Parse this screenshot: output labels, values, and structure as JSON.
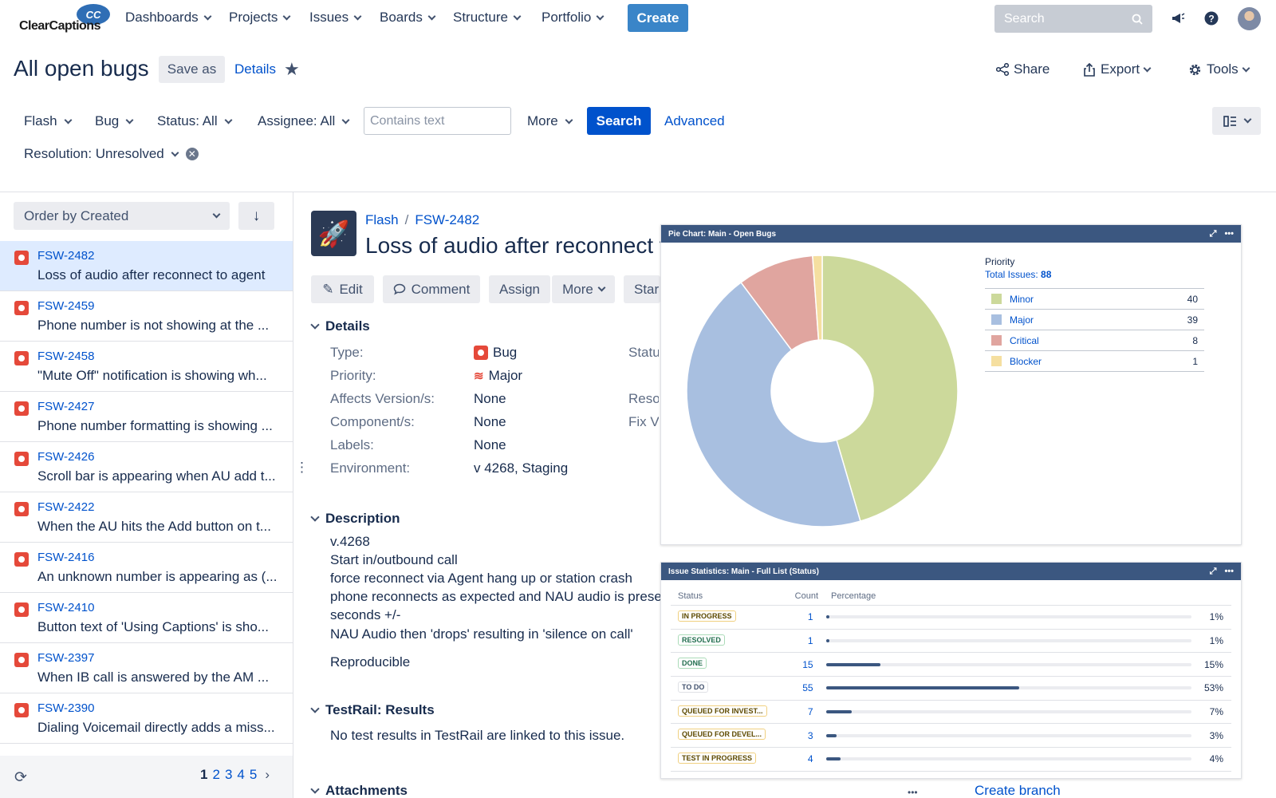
{
  "topnav": {
    "logo_text": "ClearCaptions",
    "logo_badge": "CC",
    "menus": [
      "Dashboards",
      "Projects",
      "Issues",
      "Boards",
      "Structure",
      "Portfolio"
    ],
    "create_label": "Create",
    "search_placeholder": "Search"
  },
  "header": {
    "title": "All open bugs",
    "save_as": "Save as",
    "details": "Details",
    "share": "Share",
    "export": "Export",
    "tools": "Tools"
  },
  "filters": {
    "project": "Flash",
    "type": "Bug",
    "status": "Status: All",
    "assignee": "Assignee: All",
    "text_placeholder": "Contains text",
    "more": "More",
    "search": "Search",
    "advanced": "Advanced",
    "resolution": "Resolution: Unresolved"
  },
  "list": {
    "order_by": "Order by Created",
    "issues": [
      {
        "key": "FSW-2482",
        "summary": "Loss of audio after reconnect to agent"
      },
      {
        "key": "FSW-2459",
        "summary": "Phone number is not showing at the ..."
      },
      {
        "key": "FSW-2458",
        "summary": "\"Mute Off\" notification is showing wh..."
      },
      {
        "key": "FSW-2427",
        "summary": "Phone number formatting is showing ..."
      },
      {
        "key": "FSW-2426",
        "summary": "Scroll bar is appearing when AU add t..."
      },
      {
        "key": "FSW-2422",
        "summary": "When the AU hits the Add button on t..."
      },
      {
        "key": "FSW-2416",
        "summary": "An unknown number is appearing as (..."
      },
      {
        "key": "FSW-2410",
        "summary": "Button text of 'Using Captions' is sho..."
      },
      {
        "key": "FSW-2397",
        "summary": "When IB call is answered by the AM ..."
      },
      {
        "key": "FSW-2390",
        "summary": "Dialing Voicemail directly adds a miss..."
      }
    ],
    "pages": [
      "1",
      "2",
      "3",
      "4",
      "5"
    ]
  },
  "issue": {
    "project": "Flash",
    "key": "FSW-2482",
    "title": "Loss of audio after reconnect t",
    "buttons": {
      "edit": "Edit",
      "comment": "Comment",
      "assign": "Assign",
      "more": "More",
      "start": "Star"
    },
    "details_heading": "Details",
    "fields": [
      {
        "label": "Type:",
        "value": "Bug"
      },
      {
        "label": "Priority:",
        "value": "Major"
      },
      {
        "label": "Affects Version/s:",
        "value": "None"
      },
      {
        "label": "Component/s:",
        "value": "None"
      },
      {
        "label": "Labels:",
        "value": "None"
      },
      {
        "label": "Environment:",
        "value": "v 4268, Staging"
      }
    ],
    "right_labels": [
      "Statu",
      "Reso",
      "Fix V"
    ],
    "description_heading": "Description",
    "description": [
      "v.4268",
      "Start in/outbound call",
      "force reconnect via Agent hang up or station crash",
      "phone reconnects as expected and NAU audio is prese",
      "seconds +/-",
      "NAU Audio then 'drops' resulting in 'silence on call'"
    ],
    "reproducible": "Reproducible",
    "testrail_heading": "TestRail: Results",
    "testrail_text": "No test results in TestRail are linked to this issue.",
    "attachments_heading": "Attachments",
    "create_branch": "Create branch",
    "more_dots": "•••"
  },
  "pie_gadget": {
    "title": "Pie Chart: Main - Open Bugs",
    "legend_title": "Priority",
    "total_label": "Total Issues:",
    "total": "88"
  },
  "chart_data": [
    {
      "type": "pie",
      "title": "Pie Chart: Main - Open Bugs",
      "categories": [
        "Minor",
        "Major",
        "Critical",
        "Blocker"
      ],
      "values": [
        40,
        39,
        8,
        1
      ],
      "colors": [
        "#ccd99b",
        "#a8bfe0",
        "#e0a59f",
        "#f5dfa0"
      ],
      "donut": true,
      "legend": "right"
    },
    {
      "type": "bar",
      "title": "Issue Statistics: Main - Full List (Status)",
      "columns": [
        "Status",
        "Count",
        "Percentage"
      ],
      "categories": [
        "IN PROGRESS",
        "RESOLVED",
        "DONE",
        "TO DO",
        "QUEUED FOR INVEST...",
        "QUEUED FOR DEVEL...",
        "TEST IN PROGRESS"
      ],
      "values": [
        1,
        1,
        15,
        55,
        7,
        3,
        4
      ],
      "percent": [
        1,
        1,
        15,
        53,
        7,
        3,
        4
      ],
      "percent_labels": [
        "1%",
        "1%",
        "15%",
        "53%",
        "7%",
        "3%",
        "4%"
      ]
    }
  ],
  "colors": {
    "accent": "#0052cc",
    "create": "#3a85c8",
    "gadget_header": "#3b5780",
    "bug": "#e5493a"
  }
}
